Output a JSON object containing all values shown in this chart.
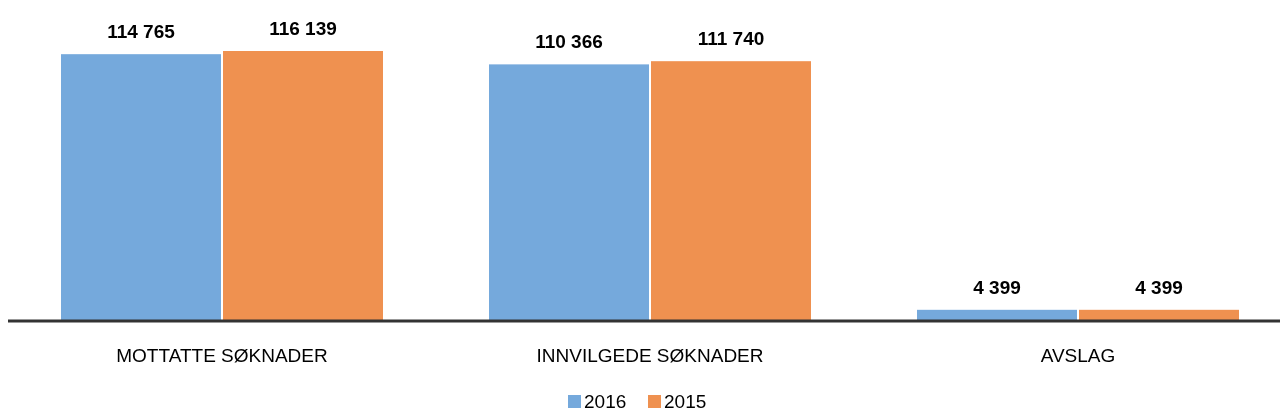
{
  "chart_data": {
    "type": "bar",
    "categories": [
      "MOTTATTE SØKNADER",
      "INNVILGEDE SØKNADER",
      "AVSLAG"
    ],
    "series": [
      {
        "name": "2016",
        "color": "#75a9dc",
        "values": [
          114765,
          110366,
          4399
        ],
        "value_labels": [
          "114 765",
          "110 366",
          "4 399"
        ]
      },
      {
        "name": "2015",
        "color": "#ef9150",
        "values": [
          116139,
          111740,
          4399
        ],
        "value_labels": [
          "116 139",
          "111 740",
          "4 399"
        ]
      }
    ],
    "legend": "bottom"
  }
}
